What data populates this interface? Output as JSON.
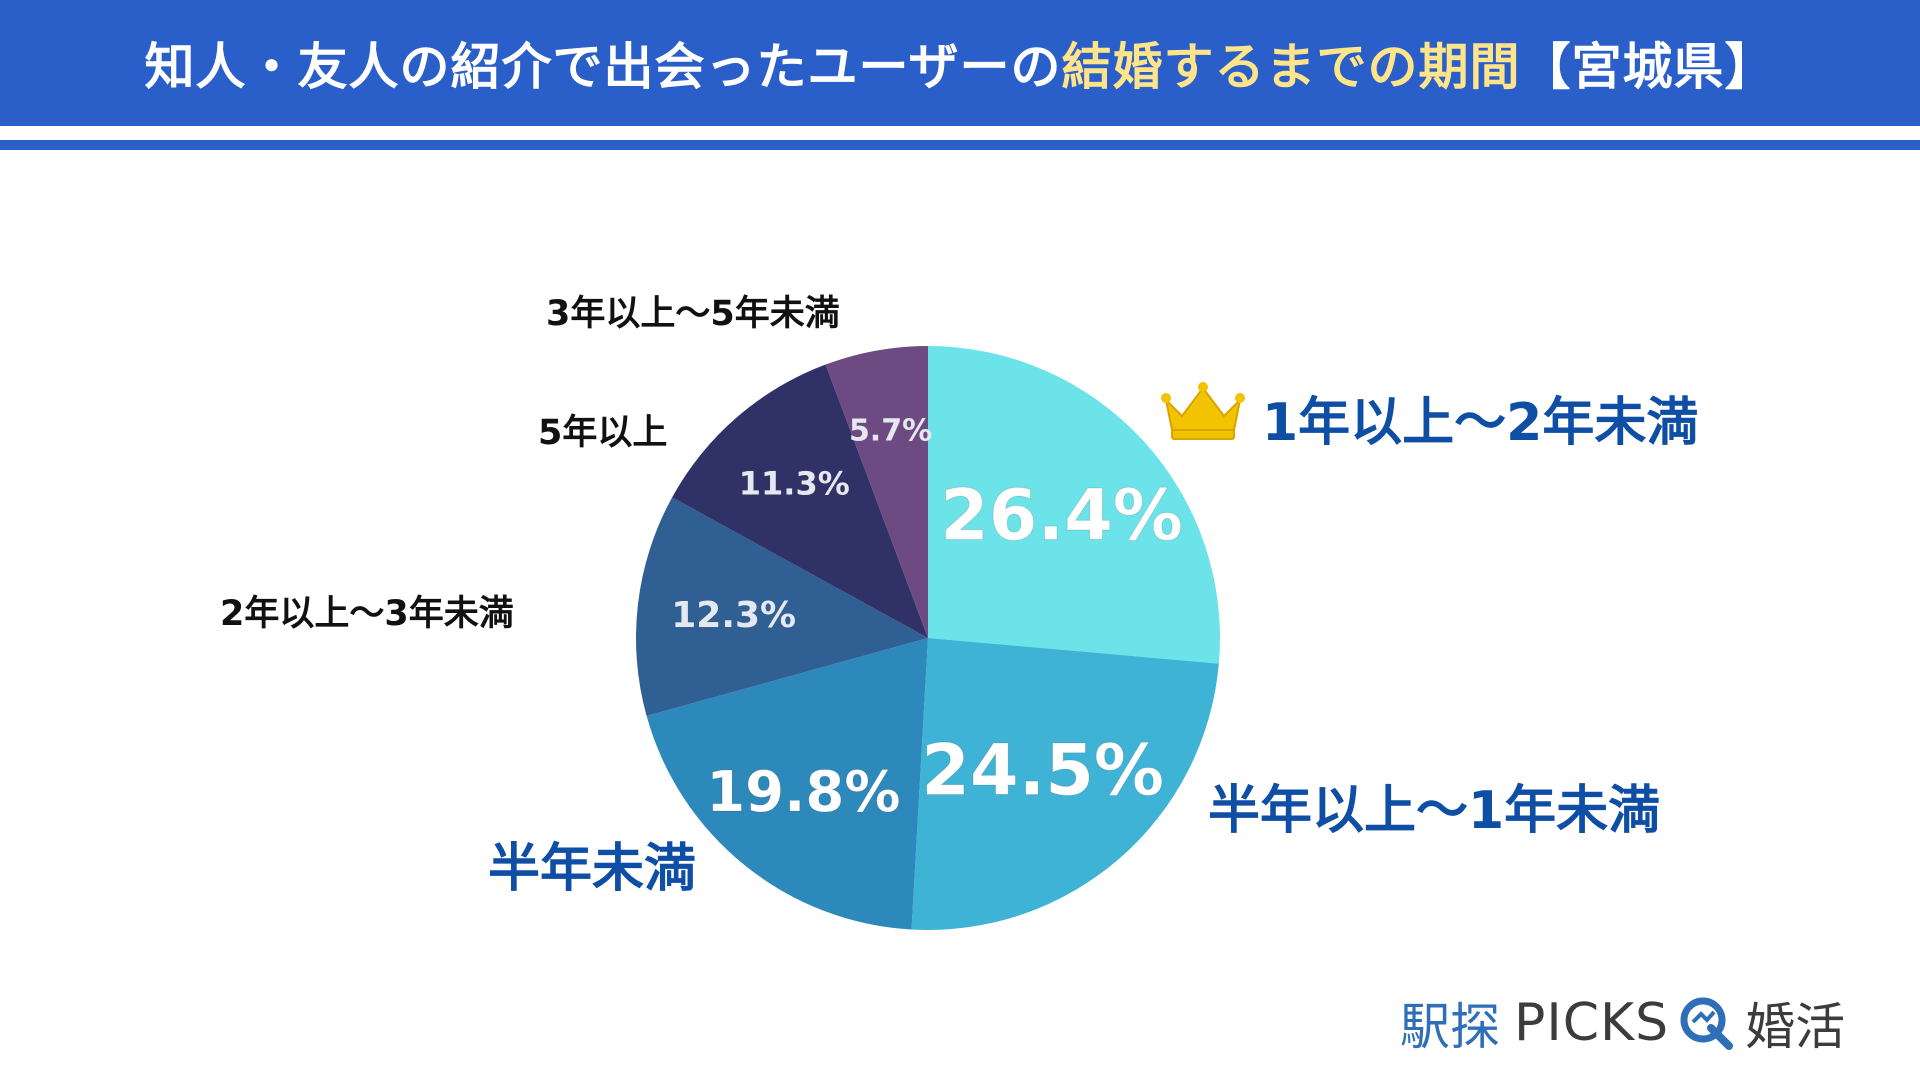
{
  "header": {
    "title_part1": "知人・友人の紹介で出会ったユーザーの",
    "title_part2": "結婚するまでの期間",
    "title_part3": "【宮城県】"
  },
  "colors": {
    "banner": "#2a5ec8",
    "highlight_text": "#ffe48a",
    "label_blue": "#0f4ea5"
  },
  "chart_data": {
    "type": "pie",
    "start_angle": "12 o'clock, clockwise",
    "categories": [
      "1年以上～2年未満",
      "半年以上～1年未満",
      "半年未満",
      "2年以上～3年未満",
      "5年以上",
      "3年以上～5年未満"
    ],
    "values": [
      26.4,
      24.5,
      19.8,
      12.3,
      11.3,
      5.7
    ],
    "value_labels": [
      "26.4%",
      "24.5%",
      "19.8%",
      "12.3%",
      "11.3%",
      "5.7%"
    ],
    "colors": [
      "#6ce3e8",
      "#3eb3d6",
      "#2d88bb",
      "#2f5f93",
      "#2f3167",
      "#6d4b82"
    ],
    "top_category_icon": "crown-icon"
  },
  "brand": {
    "name_ja": "駅探",
    "name_en": "PICKS",
    "icon": "magnifier-q-icon",
    "category": "婚活"
  }
}
